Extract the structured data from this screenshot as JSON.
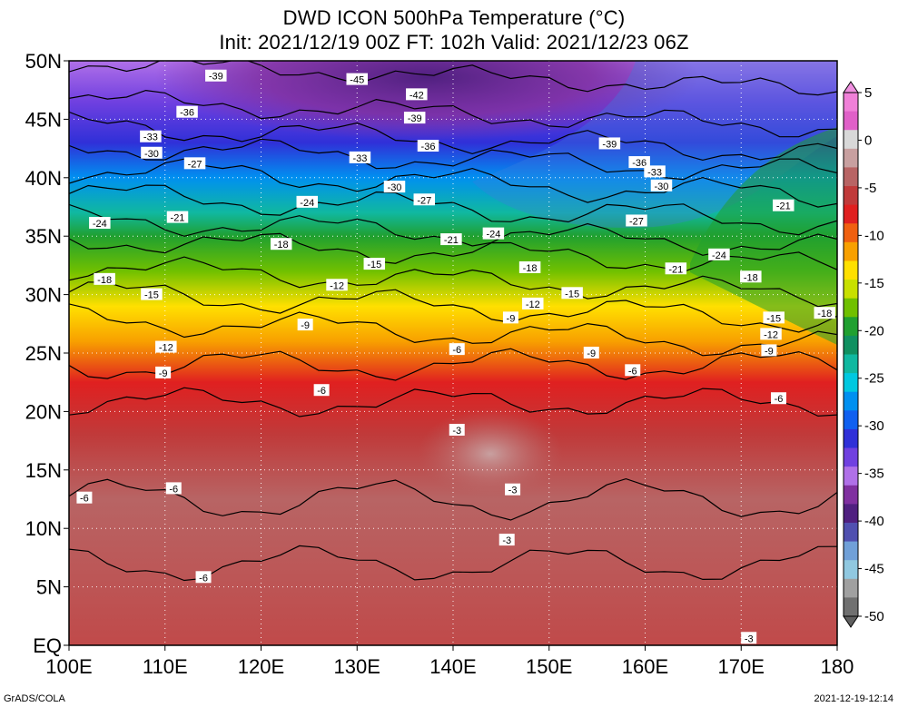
{
  "title_line1": "DWD ICON 500hPa Temperature (°C)",
  "title_line2": "Init: 2021/12/19 00Z  FT: 102h  Valid: 2021/12/23 06Z",
  "footer_left": "GrADS/COLA",
  "footer_right": "2021-12-19-12:14",
  "map": {
    "lon_range": [
      100,
      180
    ],
    "lat_range": [
      0,
      50
    ],
    "lon_ticks": [
      "100E",
      "110E",
      "120E",
      "130E",
      "140E",
      "150E",
      "160E",
      "170E",
      "180"
    ],
    "lat_ticks": [
      "EQ",
      "5N",
      "10N",
      "15N",
      "20N",
      "25N",
      "30N",
      "35N",
      "40N",
      "45N",
      "50N"
    ],
    "contour_interval": 3,
    "grid": "dotted"
  },
  "colorbar": {
    "ticks": [
      "5",
      "0",
      "-5",
      "-10",
      "-15",
      "-20",
      "-25",
      "-30",
      "-35",
      "-40",
      "-45",
      "-50"
    ],
    "colors": [
      "#f080d8",
      "#e060c8",
      "#d8d8d8",
      "#c8a0a0",
      "#b86464",
      "#c03a3a",
      "#e02020",
      "#f06010",
      "#f8a000",
      "#ffe000",
      "#c8e000",
      "#70c000",
      "#20a030",
      "#109060",
      "#10b8a0",
      "#00c8e0",
      "#0090f0",
      "#1060f0",
      "#3030d8",
      "#7040e0",
      "#b070e8",
      "#8030a0",
      "#502080",
      "#5050b0",
      "#70a0d8",
      "#90c8e0",
      "#a0a0a0",
      "#707070"
    ]
  },
  "contour_labels": [
    {
      "t": "-39",
      "lon": 115.3,
      "lat": 48.7
    },
    {
      "t": "-45",
      "lon": 130.0,
      "lat": 48.4
    },
    {
      "t": "-42",
      "lon": 136.2,
      "lat": 47.1
    },
    {
      "t": "-36",
      "lon": 112.3,
      "lat": 45.6
    },
    {
      "t": "-39",
      "lon": 136.0,
      "lat": 45.1
    },
    {
      "t": "-33",
      "lon": 108.5,
      "lat": 43.5
    },
    {
      "t": "-36",
      "lon": 137.4,
      "lat": 42.7
    },
    {
      "t": "-39",
      "lon": 156.3,
      "lat": 42.9
    },
    {
      "t": "-30",
      "lon": 108.6,
      "lat": 42.1
    },
    {
      "t": "-27",
      "lon": 113.1,
      "lat": 41.2
    },
    {
      "t": "-33",
      "lon": 130.3,
      "lat": 41.7
    },
    {
      "t": "-36",
      "lon": 159.4,
      "lat": 41.3
    },
    {
      "t": "-33",
      "lon": 161.0,
      "lat": 40.5
    },
    {
      "t": "-30",
      "lon": 133.9,
      "lat": 39.2
    },
    {
      "t": "-30",
      "lon": 161.7,
      "lat": 39.3
    },
    {
      "t": "-24",
      "lon": 124.8,
      "lat": 37.9
    },
    {
      "t": "-27",
      "lon": 137.0,
      "lat": 38.1
    },
    {
      "t": "-21",
      "lon": 174.4,
      "lat": 37.6
    },
    {
      "t": "-24",
      "lon": 103.2,
      "lat": 36.1
    },
    {
      "t": "-21",
      "lon": 111.3,
      "lat": 36.6
    },
    {
      "t": "-27",
      "lon": 159.1,
      "lat": 36.3
    },
    {
      "t": "-24",
      "lon": 144.2,
      "lat": 35.2
    },
    {
      "t": "-21",
      "lon": 139.8,
      "lat": 34.7
    },
    {
      "t": "-18",
      "lon": 122.1,
      "lat": 34.3
    },
    {
      "t": "-24",
      "lon": 167.7,
      "lat": 33.4
    },
    {
      "t": "-15",
      "lon": 131.8,
      "lat": 32.6
    },
    {
      "t": "-18",
      "lon": 148.0,
      "lat": 32.3
    },
    {
      "t": "-21",
      "lon": 163.2,
      "lat": 32.2
    },
    {
      "t": "-18",
      "lon": 103.7,
      "lat": 31.3
    },
    {
      "t": "-18",
      "lon": 171.0,
      "lat": 31.5
    },
    {
      "t": "-12",
      "lon": 127.9,
      "lat": 30.8
    },
    {
      "t": "-15",
      "lon": 108.6,
      "lat": 30.0
    },
    {
      "t": "-15",
      "lon": 152.4,
      "lat": 30.1
    },
    {
      "t": "-12",
      "lon": 148.3,
      "lat": 29.2
    },
    {
      "t": "-15",
      "lon": 173.4,
      "lat": 28.0
    },
    {
      "t": "-18",
      "lon": 178.7,
      "lat": 28.4
    },
    {
      "t": "-9",
      "lon": 124.6,
      "lat": 27.4
    },
    {
      "t": "-9",
      "lon": 146.0,
      "lat": 28.0
    },
    {
      "t": "-12",
      "lon": 173.1,
      "lat": 26.6
    },
    {
      "t": "-12",
      "lon": 110.1,
      "lat": 25.5
    },
    {
      "t": "-6",
      "lon": 140.4,
      "lat": 25.3
    },
    {
      "t": "-9",
      "lon": 154.4,
      "lat": 25.0
    },
    {
      "t": "-9",
      "lon": 172.9,
      "lat": 25.2
    },
    {
      "t": "-9",
      "lon": 109.8,
      "lat": 23.3
    },
    {
      "t": "-6",
      "lon": 158.7,
      "lat": 23.5
    },
    {
      "t": "-6",
      "lon": 126.3,
      "lat": 21.8
    },
    {
      "t": "-6",
      "lon": 173.9,
      "lat": 21.1
    },
    {
      "t": "-3",
      "lon": 140.4,
      "lat": 18.4
    },
    {
      "t": "-6",
      "lon": 101.6,
      "lat": 12.6
    },
    {
      "t": "-6",
      "lon": 110.9,
      "lat": 13.4
    },
    {
      "t": "-3",
      "lon": 146.2,
      "lat": 13.3
    },
    {
      "t": "-3",
      "lon": 145.6,
      "lat": 9.0
    },
    {
      "t": "-6",
      "lon": 114.0,
      "lat": 5.8
    },
    {
      "t": "-3",
      "lon": 170.8,
      "lat": 0.6
    }
  ]
}
